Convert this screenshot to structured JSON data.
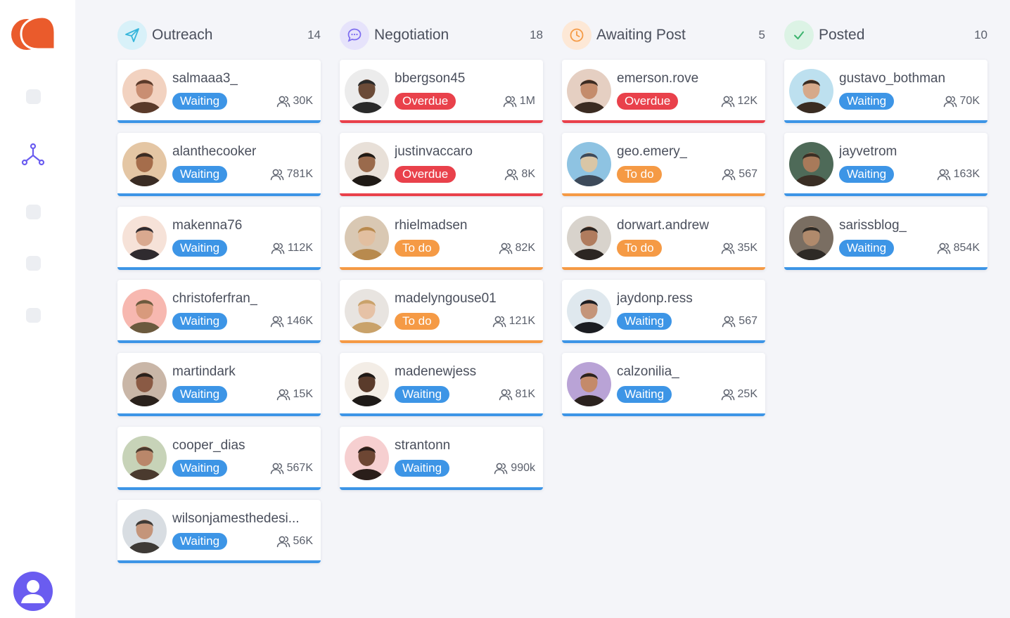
{
  "colors": {
    "brand": "#ea5b2c",
    "accent": "#6a5cf0",
    "waiting": "#3d95e6",
    "overdue": "#e9414b",
    "todo": "#f59a45"
  },
  "sidebar": {
    "items": [
      {
        "icon": "nav-placeholder-icon"
      },
      {
        "icon": "network-icon",
        "active": true
      },
      {
        "icon": "nav-placeholder-icon"
      },
      {
        "icon": "nav-placeholder-icon"
      },
      {
        "icon": "nav-placeholder-icon"
      }
    ],
    "profile_icon": "user-icon"
  },
  "columns": [
    {
      "title": "Outreach",
      "count": "14",
      "icon": "send-icon",
      "cards": [
        {
          "name": "salmaaa3_",
          "status": "Waiting",
          "followers": "30K"
        },
        {
          "name": "alanthecooker",
          "status": "Waiting",
          "followers": "781K"
        },
        {
          "name": "makenna76",
          "status": "Waiting",
          "followers": "112K"
        },
        {
          "name": "christoferfran_",
          "status": "Waiting",
          "followers": "146K"
        },
        {
          "name": "martindark",
          "status": "Waiting",
          "followers": "15K"
        },
        {
          "name": "cooper_dias",
          "status": "Waiting",
          "followers": "567K"
        },
        {
          "name": "wilsonjamesthedesi...",
          "status": "Waiting",
          "followers": "56K"
        }
      ]
    },
    {
      "title": "Negotiation",
      "count": "18",
      "icon": "chat-icon",
      "cards": [
        {
          "name": "bbergson45",
          "status": "Overdue",
          "followers": "1M"
        },
        {
          "name": "justinvaccaro",
          "status": "Overdue",
          "followers": "8K"
        },
        {
          "name": "rhielmadsen",
          "status": "To do",
          "followers": "82K"
        },
        {
          "name": "madelyngouse01",
          "status": "To do",
          "followers": "121K"
        },
        {
          "name": "madenewjess",
          "status": "Waiting",
          "followers": "81K"
        },
        {
          "name": "strantonn",
          "status": "Waiting",
          "followers": "990k"
        }
      ]
    },
    {
      "title": "Awaiting Post",
      "count": "5",
      "icon": "clock-icon",
      "cards": [
        {
          "name": "emerson.rove",
          "status": "Overdue",
          "followers": "12K"
        },
        {
          "name": "geo.emery_",
          "status": "To do",
          "followers": "567"
        },
        {
          "name": "dorwart.andrew",
          "status": "To do",
          "followers": "35K"
        },
        {
          "name": "jaydonp.ress",
          "status": "Waiting",
          "followers": "567"
        },
        {
          "name": "calzonilia_",
          "status": "Waiting",
          "followers": "25K"
        }
      ]
    },
    {
      "title": "Posted",
      "count": "10",
      "icon": "check-icon",
      "cards": [
        {
          "name": "gustavo_bothman",
          "status": "Waiting",
          "followers": "70K"
        },
        {
          "name": "jayvetrom",
          "status": "Waiting",
          "followers": "163K"
        },
        {
          "name": "sarissblog_",
          "status": "Waiting",
          "followers": "854K"
        }
      ]
    }
  ]
}
